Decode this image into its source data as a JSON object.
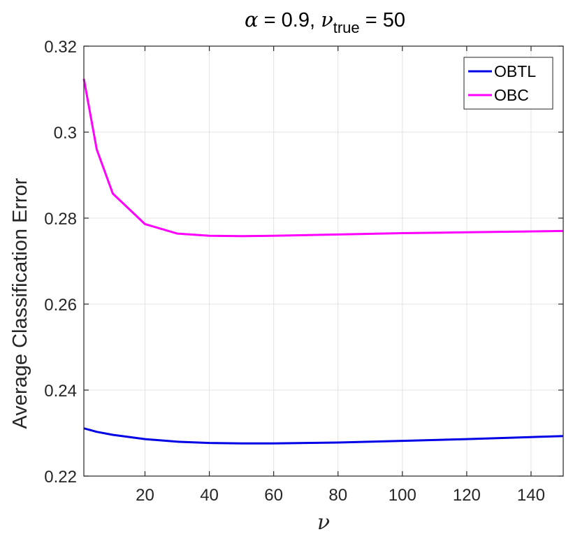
{
  "chart_data": {
    "type": "line",
    "title": {
      "alpha_symbol": "α",
      "alpha_text": " = 0.9, ",
      "nu_symbol": "ν",
      "nu_subscript": "true",
      "nu_text": " = 50"
    },
    "xlabel": "ν",
    "ylabel": "Average Classification Error",
    "xlim": [
      1,
      150
    ],
    "ylim": [
      0.22,
      0.32
    ],
    "xticks": [
      20,
      40,
      60,
      80,
      100,
      120,
      140
    ],
    "xtick_labels": [
      "20",
      "40",
      "60",
      "80",
      "100",
      "120",
      "140"
    ],
    "yticks": [
      0.22,
      0.24,
      0.26,
      0.28,
      0.3,
      0.32
    ],
    "ytick_labels": [
      "0.22",
      "0.24",
      "0.26",
      "0.28",
      "0.3",
      "0.32"
    ],
    "grid": true,
    "legend_position": "top-right",
    "series": [
      {
        "name": "OBTL",
        "color": "#0000e6",
        "x": [
          1,
          5,
          10,
          20,
          30,
          40,
          50,
          60,
          80,
          100,
          120,
          150
        ],
        "y": [
          0.2311,
          0.2303,
          0.2296,
          0.2286,
          0.228,
          0.2277,
          0.2276,
          0.2276,
          0.2278,
          0.2282,
          0.2286,
          0.2293
        ]
      },
      {
        "name": "OBC",
        "color": "#ff00ff",
        "x": [
          1,
          5,
          10,
          20,
          30,
          40,
          50,
          60,
          80,
          100,
          120,
          150
        ],
        "y": [
          0.3124,
          0.296,
          0.2857,
          0.2786,
          0.2764,
          0.2759,
          0.2758,
          0.2759,
          0.2762,
          0.2765,
          0.2767,
          0.277
        ]
      }
    ]
  }
}
